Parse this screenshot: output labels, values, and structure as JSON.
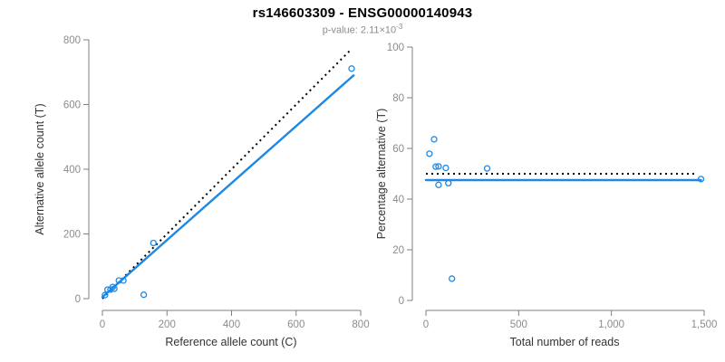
{
  "header": {
    "title": "rs146603309 - ENSG00000140943",
    "subtitle_prefix": "p-value: 2.11×10",
    "subtitle_exponent": "-3"
  },
  "colors": {
    "point": "#1E88E5",
    "fit_line": "#1E88E5",
    "dotted_line": "#000000",
    "axis_line": "#7f7f7f",
    "tick_label": "#8c8c8c",
    "axis_title": "#333333",
    "title_text": "#000000",
    "subtitle_text": "#8c8c8c"
  },
  "chart_data": [
    {
      "type": "scatter",
      "name": "allele-count-scatter",
      "title": "rs146603309 - ENSG00000140943",
      "subtitle": "p-value: 2.11×10^-3",
      "xlabel": "Reference allele count (C)",
      "ylabel": "Alternative allele count (T)",
      "xlim": [
        0,
        800
      ],
      "ylim": [
        0,
        800
      ],
      "grid": false,
      "legend": false,
      "xticks": [
        {
          "v": 0,
          "label": "0"
        },
        {
          "v": 200,
          "label": "200"
        },
        {
          "v": 400,
          "label": "400"
        },
        {
          "v": 600,
          "label": "600"
        },
        {
          "v": 800,
          "label": "800"
        }
      ],
      "yticks": [
        {
          "v": 0,
          "label": "0"
        },
        {
          "v": 200,
          "label": "200"
        },
        {
          "v": 400,
          "label": "400"
        },
        {
          "v": 600,
          "label": "600"
        },
        {
          "v": 800,
          "label": "800"
        }
      ],
      "points": [
        [
          8,
          11
        ],
        [
          16,
          28
        ],
        [
          25,
          28
        ],
        [
          32,
          36
        ],
        [
          37,
          31
        ],
        [
          51,
          56
        ],
        [
          65,
          56
        ],
        [
          128,
          12
        ],
        [
          158,
          172
        ],
        [
          772,
          711
        ]
      ],
      "lines": [
        {
          "name": "identity-line",
          "style": "dotted",
          "color": "#000000",
          "x1": 0,
          "y1": 0,
          "x2": 772,
          "y2": 772
        },
        {
          "name": "fit-line",
          "style": "solid",
          "color": "#1E88E5",
          "x1": 0,
          "y1": 5,
          "x2": 778,
          "y2": 690
        }
      ]
    },
    {
      "type": "scatter",
      "name": "percentage-scatter",
      "title": "rs146603309 - ENSG00000140943",
      "subtitle": "p-value: 2.11×10^-3",
      "xlabel": "Total number of reads",
      "ylabel": "Percentage alternative (T)",
      "xlim": [
        0,
        1500
      ],
      "ylim": [
        0,
        100
      ],
      "grid": false,
      "legend": false,
      "xticks": [
        {
          "v": 0,
          "label": "0"
        },
        {
          "v": 500,
          "label": "500"
        },
        {
          "v": 1000,
          "label": "1,000"
        },
        {
          "v": 1500,
          "label": "1,500"
        }
      ],
      "yticks": [
        {
          "v": 0,
          "label": "0"
        },
        {
          "v": 20,
          "label": "20"
        },
        {
          "v": 40,
          "label": "40"
        },
        {
          "v": 60,
          "label": "60"
        },
        {
          "v": 80,
          "label": "80"
        },
        {
          "v": 100,
          "label": "100"
        }
      ],
      "points": [
        [
          19,
          57.9
        ],
        [
          44,
          63.6
        ],
        [
          53,
          52.8
        ],
        [
          68,
          52.9
        ],
        [
          68,
          45.6
        ],
        [
          107,
          52.3
        ],
        [
          121,
          46.3
        ],
        [
          140,
          8.6
        ],
        [
          330,
          52.1
        ],
        [
          1483,
          47.9
        ]
      ],
      "lines": [
        {
          "name": "expected-line",
          "style": "dotted",
          "color": "#000000",
          "x1": 0,
          "y1": 50,
          "x2": 1465,
          "y2": 50
        },
        {
          "name": "mean-line",
          "style": "solid",
          "color": "#1E88E5",
          "x1": 0,
          "y1": 47.5,
          "x2": 1483,
          "y2": 47.5
        }
      ]
    }
  ]
}
